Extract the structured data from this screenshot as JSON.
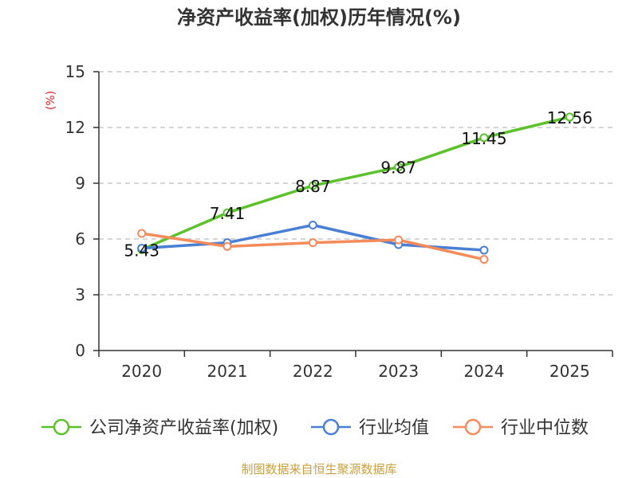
{
  "chart_data": {
    "type": "line",
    "title": "净资产收益率(加权)历年情况(%)",
    "ylabel": "(%)",
    "xlabel": "",
    "categories": [
      "2020",
      "2021",
      "2022",
      "2023",
      "2024",
      "2025"
    ],
    "ylim": [
      0,
      15
    ],
    "yticks": [
      0,
      3,
      6,
      9,
      12,
      15
    ],
    "grid": true,
    "legend_position": "bottom",
    "series": [
      {
        "name": "公司净资产收益率(加权)",
        "color": "#5bc22b",
        "values": [
          5.43,
          7.41,
          8.87,
          9.87,
          11.45,
          12.56
        ],
        "labels": [
          "5.43",
          "7.41",
          "8.87",
          "9.87",
          "11.45",
          "12.56"
        ]
      },
      {
        "name": "行业均值",
        "color": "#4a7fd6",
        "values": [
          5.5,
          5.8,
          6.75,
          5.7,
          5.4,
          null
        ]
      },
      {
        "name": "行业中位数",
        "color": "#f58a5a",
        "values": [
          6.3,
          5.6,
          5.8,
          5.95,
          4.9,
          null
        ]
      }
    ],
    "source": "制图数据来自恒生聚源数据库"
  }
}
